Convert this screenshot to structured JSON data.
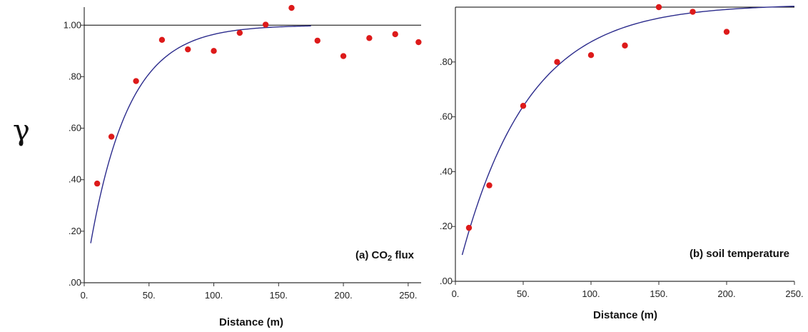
{
  "ylabel": "γ",
  "colors": {
    "point": "#dd1a1a",
    "curve": "#2b2b8c",
    "axis": "#333333",
    "sill": "#000000"
  },
  "chart_data": [
    {
      "type": "scatter",
      "panel_label": "(a) CO",
      "panel_label_sub": "2",
      "panel_label_tail": " flux",
      "xlabel": "Distance (m)",
      "xlim": [
        0,
        260
      ],
      "ylim": [
        0,
        1.07
      ],
      "x_ticks": [
        0,
        50,
        100,
        150,
        200,
        250
      ],
      "x_tick_labels": [
        "0.",
        "50.",
        "100.",
        "150.",
        "200.",
        "250."
      ],
      "y_ticks": [
        0,
        0.2,
        0.4,
        0.6,
        0.8,
        1.0
      ],
      "y_tick_labels": [
        ".00",
        ".20",
        ".40",
        ".60",
        ".80",
        "1.00"
      ],
      "sill": 1.0,
      "series": [
        {
          "kind": "points",
          "x": [
            10,
            21,
            40,
            60,
            80,
            100,
            120,
            140,
            160,
            180,
            200,
            220,
            240,
            258
          ],
          "y": [
            0.385,
            0.567,
            0.783,
            0.943,
            0.906,
            0.9,
            0.97,
            1.002,
            1.067,
            0.94,
            0.88,
            0.95,
            0.965,
            0.934
          ]
        },
        {
          "kind": "model",
          "model": "exponential",
          "nugget": 0.0,
          "sill": 1.0,
          "effective_range": 90,
          "x_start": 5,
          "x_end": 175
        }
      ]
    },
    {
      "type": "scatter",
      "panel_label": "(b) soil temperature",
      "xlabel": "Distance (m)",
      "xlim": [
        0,
        250
      ],
      "ylim": [
        0,
        1.0
      ],
      "x_ticks": [
        0,
        50,
        100,
        150,
        200,
        250
      ],
      "x_tick_labels": [
        "0.",
        "50.",
        "100.",
        "150.",
        "200.",
        "250."
      ],
      "y_ticks": [
        0,
        0.2,
        0.4,
        0.6,
        0.8
      ],
      "y_tick_labels": [
        ".00",
        ".20",
        ".40",
        ".60",
        ".80"
      ],
      "sill": 1.0,
      "series": [
        {
          "kind": "points",
          "x": [
            10,
            25,
            50,
            75,
            100,
            125,
            150,
            175,
            200
          ],
          "y": [
            0.195,
            0.35,
            0.64,
            0.8,
            0.825,
            0.86,
            1.0,
            0.983,
            0.91
          ]
        },
        {
          "kind": "model",
          "model": "exponential",
          "nugget": 0.0,
          "sill": 1.01,
          "effective_range": 150,
          "x_start": 5,
          "x_end": 250
        }
      ]
    }
  ]
}
